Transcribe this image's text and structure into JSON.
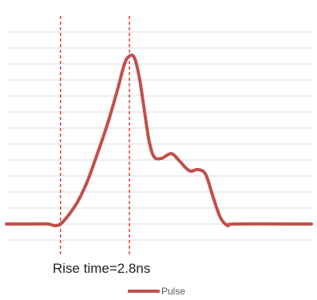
{
  "chart_data": {
    "type": "line",
    "x_unit": "ns",
    "xlim": [
      -2.2,
      10.2
    ],
    "ylim": [
      -0.15,
      1.3
    ],
    "y_gridlines": [
      -0.1,
      0.0,
      0.1,
      0.2,
      0.3,
      0.4,
      0.5,
      0.6,
      0.7,
      0.8,
      0.9,
      1.0,
      1.1,
      1.2
    ],
    "grid": "horizontal",
    "series": [
      {
        "name": "Pulse",
        "color": "#c0504d",
        "points": [
          [
            -2.2,
            0.0
          ],
          [
            -1.2,
            0.0
          ],
          [
            -0.5,
            0.0
          ],
          [
            -0.25,
            -0.01
          ],
          [
            0.0,
            0.0
          ],
          [
            0.3,
            0.05
          ],
          [
            0.7,
            0.14
          ],
          [
            1.1,
            0.27
          ],
          [
            1.5,
            0.44
          ],
          [
            1.9,
            0.62
          ],
          [
            2.3,
            0.83
          ],
          [
            2.6,
            1.0
          ],
          [
            2.8,
            1.05
          ],
          [
            3.0,
            1.04
          ],
          [
            3.2,
            0.92
          ],
          [
            3.4,
            0.72
          ],
          [
            3.6,
            0.52
          ],
          [
            3.8,
            0.42
          ],
          [
            4.1,
            0.41
          ],
          [
            4.5,
            0.44
          ],
          [
            4.8,
            0.4
          ],
          [
            5.1,
            0.35
          ],
          [
            5.3,
            0.33
          ],
          [
            5.6,
            0.34
          ],
          [
            5.9,
            0.31
          ],
          [
            6.2,
            0.17
          ],
          [
            6.5,
            0.04
          ],
          [
            6.8,
            -0.01
          ],
          [
            7.1,
            0.0
          ],
          [
            10.2,
            0.0
          ]
        ]
      }
    ],
    "markers": [
      {
        "x": 0.0,
        "color": "#e02020",
        "style": "dashed"
      },
      {
        "x": 2.8,
        "color": "#e02020",
        "style": "dashed"
      }
    ],
    "annotations": [
      {
        "text": "Rise time=2.8ns"
      }
    ],
    "legend": {
      "position": "bottom",
      "entries": [
        "Pulse"
      ]
    }
  }
}
